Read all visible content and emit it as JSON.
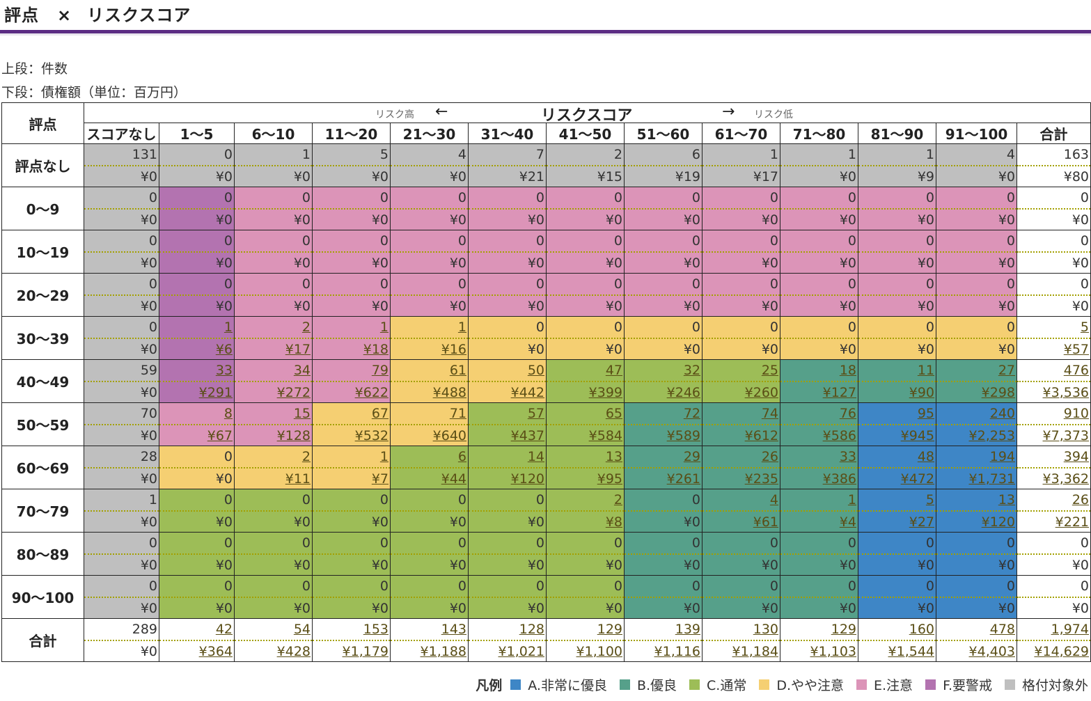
{
  "title": {
    "left": "評点",
    "x": "×",
    "right": "リスクスコア"
  },
  "notes": {
    "upper": "上段：件数",
    "lower": "下段：債権額（単位：百万円）"
  },
  "header": {
    "row_label": "評点",
    "risk_high": "リスク高",
    "arrow_left": "←",
    "main": "リスクスコア",
    "arrow_right": "→",
    "risk_low": "リスク低",
    "columns": [
      "スコアなし",
      "1～5",
      "6～10",
      "11～20",
      "21～30",
      "31～40",
      "41～50",
      "51～60",
      "61～70",
      "71～80",
      "81～90",
      "91～100",
      "合計"
    ]
  },
  "colors": {
    "A": "#3e86c6",
    "B": "#56a08a",
    "C": "#9dbd57",
    "D": "#f5cf72",
    "E": "#dc94b8",
    "F": "#b373b0",
    "X": "#bfbfbf",
    "T": "#ffffff"
  },
  "rows": [
    {
      "label": "評点なし",
      "cells": [
        {
          "c": "X",
          "n": "131",
          "a": "¥0"
        },
        {
          "c": "X",
          "n": "0",
          "a": "¥0"
        },
        {
          "c": "X",
          "n": "1",
          "a": "¥0"
        },
        {
          "c": "X",
          "n": "5",
          "a": "¥0"
        },
        {
          "c": "X",
          "n": "4",
          "a": "¥0"
        },
        {
          "c": "X",
          "n": "7",
          "a": "¥21"
        },
        {
          "c": "X",
          "n": "2",
          "a": "¥15"
        },
        {
          "c": "X",
          "n": "6",
          "a": "¥19"
        },
        {
          "c": "X",
          "n": "1",
          "a": "¥17"
        },
        {
          "c": "X",
          "n": "1",
          "a": "¥0"
        },
        {
          "c": "X",
          "n": "1",
          "a": "¥9"
        },
        {
          "c": "X",
          "n": "4",
          "a": "¥0"
        },
        {
          "c": "T",
          "n": "163",
          "a": "¥80"
        }
      ]
    },
    {
      "label": "0～9",
      "cells": [
        {
          "c": "X",
          "n": "0",
          "a": "¥0"
        },
        {
          "c": "F",
          "n": "0",
          "a": "¥0"
        },
        {
          "c": "E",
          "n": "0",
          "a": "¥0"
        },
        {
          "c": "E",
          "n": "0",
          "a": "¥0"
        },
        {
          "c": "E",
          "n": "0",
          "a": "¥0"
        },
        {
          "c": "E",
          "n": "0",
          "a": "¥0"
        },
        {
          "c": "E",
          "n": "0",
          "a": "¥0"
        },
        {
          "c": "E",
          "n": "0",
          "a": "¥0"
        },
        {
          "c": "E",
          "n": "0",
          "a": "¥0"
        },
        {
          "c": "E",
          "n": "0",
          "a": "¥0"
        },
        {
          "c": "E",
          "n": "0",
          "a": "¥0"
        },
        {
          "c": "E",
          "n": "0",
          "a": "¥0"
        },
        {
          "c": "T",
          "n": "0",
          "a": "¥0"
        }
      ]
    },
    {
      "label": "10～19",
      "cells": [
        {
          "c": "X",
          "n": "0",
          "a": "¥0"
        },
        {
          "c": "F",
          "n": "0",
          "a": "¥0"
        },
        {
          "c": "E",
          "n": "0",
          "a": "¥0"
        },
        {
          "c": "E",
          "n": "0",
          "a": "¥0"
        },
        {
          "c": "E",
          "n": "0",
          "a": "¥0"
        },
        {
          "c": "E",
          "n": "0",
          "a": "¥0"
        },
        {
          "c": "E",
          "n": "0",
          "a": "¥0"
        },
        {
          "c": "E",
          "n": "0",
          "a": "¥0"
        },
        {
          "c": "E",
          "n": "0",
          "a": "¥0"
        },
        {
          "c": "E",
          "n": "0",
          "a": "¥0"
        },
        {
          "c": "E",
          "n": "0",
          "a": "¥0"
        },
        {
          "c": "E",
          "n": "0",
          "a": "¥0"
        },
        {
          "c": "T",
          "n": "0",
          "a": "¥0"
        }
      ]
    },
    {
      "label": "20～29",
      "cells": [
        {
          "c": "X",
          "n": "0",
          "a": "¥0"
        },
        {
          "c": "F",
          "n": "0",
          "a": "¥0"
        },
        {
          "c": "E",
          "n": "0",
          "a": "¥0"
        },
        {
          "c": "E",
          "n": "0",
          "a": "¥0"
        },
        {
          "c": "E",
          "n": "0",
          "a": "¥0"
        },
        {
          "c": "E",
          "n": "0",
          "a": "¥0"
        },
        {
          "c": "E",
          "n": "0",
          "a": "¥0"
        },
        {
          "c": "E",
          "n": "0",
          "a": "¥0"
        },
        {
          "c": "E",
          "n": "0",
          "a": "¥0"
        },
        {
          "c": "E",
          "n": "0",
          "a": "¥0"
        },
        {
          "c": "E",
          "n": "0",
          "a": "¥0"
        },
        {
          "c": "E",
          "n": "0",
          "a": "¥0"
        },
        {
          "c": "T",
          "n": "0",
          "a": "¥0"
        }
      ]
    },
    {
      "label": "30～39",
      "cells": [
        {
          "c": "X",
          "n": "0",
          "a": "¥0"
        },
        {
          "c": "F",
          "n": "1",
          "a": "¥6",
          "u": true
        },
        {
          "c": "E",
          "n": "2",
          "a": "¥17",
          "u": true
        },
        {
          "c": "E",
          "n": "1",
          "a": "¥18",
          "u": true
        },
        {
          "c": "D",
          "n": "1",
          "a": "¥16",
          "u": true
        },
        {
          "c": "D",
          "n": "0",
          "a": "¥0"
        },
        {
          "c": "D",
          "n": "0",
          "a": "¥0"
        },
        {
          "c": "D",
          "n": "0",
          "a": "¥0"
        },
        {
          "c": "D",
          "n": "0",
          "a": "¥0"
        },
        {
          "c": "D",
          "n": "0",
          "a": "¥0"
        },
        {
          "c": "D",
          "n": "0",
          "a": "¥0"
        },
        {
          "c": "D",
          "n": "0",
          "a": "¥0"
        },
        {
          "c": "T",
          "n": "5",
          "a": "¥57",
          "u": true
        }
      ]
    },
    {
      "label": "40～49",
      "cells": [
        {
          "c": "X",
          "n": "59",
          "a": "¥0"
        },
        {
          "c": "F",
          "n": "33",
          "a": "¥291",
          "u": true
        },
        {
          "c": "E",
          "n": "34",
          "a": "¥272",
          "u": true
        },
        {
          "c": "E",
          "n": "79",
          "a": "¥622",
          "u": true
        },
        {
          "c": "D",
          "n": "61",
          "a": "¥488",
          "u": true
        },
        {
          "c": "D",
          "n": "50",
          "a": "¥442",
          "u": true
        },
        {
          "c": "C",
          "n": "47",
          "a": "¥399",
          "u": true
        },
        {
          "c": "C",
          "n": "32",
          "a": "¥246",
          "u": true
        },
        {
          "c": "C",
          "n": "25",
          "a": "¥260",
          "u": true
        },
        {
          "c": "B",
          "n": "18",
          "a": "¥127",
          "u": true
        },
        {
          "c": "B",
          "n": "11",
          "a": "¥90",
          "u": true
        },
        {
          "c": "B",
          "n": "27",
          "a": "¥298",
          "u": true
        },
        {
          "c": "T",
          "n": "476",
          "a": "¥3,536",
          "u": true
        }
      ]
    },
    {
      "label": "50～59",
      "cells": [
        {
          "c": "X",
          "n": "70",
          "a": "¥0"
        },
        {
          "c": "E",
          "n": "8",
          "a": "¥67",
          "u": true
        },
        {
          "c": "E",
          "n": "15",
          "a": "¥128",
          "u": true
        },
        {
          "c": "D",
          "n": "67",
          "a": "¥532",
          "u": true
        },
        {
          "c": "D",
          "n": "71",
          "a": "¥640",
          "u": true
        },
        {
          "c": "C",
          "n": "57",
          "a": "¥437",
          "u": true
        },
        {
          "c": "C",
          "n": "65",
          "a": "¥584",
          "u": true
        },
        {
          "c": "B",
          "n": "72",
          "a": "¥589",
          "u": true
        },
        {
          "c": "B",
          "n": "74",
          "a": "¥612",
          "u": true
        },
        {
          "c": "B",
          "n": "76",
          "a": "¥586",
          "u": true
        },
        {
          "c": "A",
          "n": "95",
          "a": "¥945",
          "u": true
        },
        {
          "c": "A",
          "n": "240",
          "a": "¥2,253",
          "u": true
        },
        {
          "c": "T",
          "n": "910",
          "a": "¥7,373",
          "u": true
        }
      ]
    },
    {
      "label": "60～69",
      "cells": [
        {
          "c": "X",
          "n": "28",
          "a": "¥0"
        },
        {
          "c": "D",
          "n": "0",
          "a": "¥0"
        },
        {
          "c": "D",
          "n": "2",
          "a": "¥11",
          "u": true
        },
        {
          "c": "D",
          "n": "1",
          "a": "¥7",
          "u": true
        },
        {
          "c": "C",
          "n": "6",
          "a": "¥44",
          "u": true
        },
        {
          "c": "C",
          "n": "14",
          "a": "¥120",
          "u": true
        },
        {
          "c": "C",
          "n": "13",
          "a": "¥95",
          "u": true
        },
        {
          "c": "B",
          "n": "29",
          "a": "¥261",
          "u": true
        },
        {
          "c": "B",
          "n": "26",
          "a": "¥235",
          "u": true
        },
        {
          "c": "B",
          "n": "33",
          "a": "¥386",
          "u": true
        },
        {
          "c": "A",
          "n": "48",
          "a": "¥472",
          "u": true
        },
        {
          "c": "A",
          "n": "194",
          "a": "¥1,731",
          "u": true
        },
        {
          "c": "T",
          "n": "394",
          "a": "¥3,362",
          "u": true
        }
      ]
    },
    {
      "label": "70～79",
      "cells": [
        {
          "c": "X",
          "n": "1",
          "a": "¥0"
        },
        {
          "c": "C",
          "n": "0",
          "a": "¥0"
        },
        {
          "c": "C",
          "n": "0",
          "a": "¥0"
        },
        {
          "c": "C",
          "n": "0",
          "a": "¥0"
        },
        {
          "c": "C",
          "n": "0",
          "a": "¥0"
        },
        {
          "c": "C",
          "n": "0",
          "a": "¥0"
        },
        {
          "c": "C",
          "n": "2",
          "a": "¥8",
          "u": true
        },
        {
          "c": "B",
          "n": "0",
          "a": "¥0"
        },
        {
          "c": "B",
          "n": "4",
          "a": "¥61",
          "u": true
        },
        {
          "c": "B",
          "n": "1",
          "a": "¥4",
          "u": true
        },
        {
          "c": "A",
          "n": "5",
          "a": "¥27",
          "u": true
        },
        {
          "c": "A",
          "n": "13",
          "a": "¥120",
          "u": true
        },
        {
          "c": "T",
          "n": "26",
          "a": "¥221",
          "u": true
        }
      ]
    },
    {
      "label": "80～89",
      "cells": [
        {
          "c": "X",
          "n": "0",
          "a": "¥0"
        },
        {
          "c": "C",
          "n": "0",
          "a": "¥0"
        },
        {
          "c": "C",
          "n": "0",
          "a": "¥0"
        },
        {
          "c": "C",
          "n": "0",
          "a": "¥0"
        },
        {
          "c": "C",
          "n": "0",
          "a": "¥0"
        },
        {
          "c": "C",
          "n": "0",
          "a": "¥0"
        },
        {
          "c": "C",
          "n": "0",
          "a": "¥0"
        },
        {
          "c": "B",
          "n": "0",
          "a": "¥0"
        },
        {
          "c": "B",
          "n": "0",
          "a": "¥0"
        },
        {
          "c": "B",
          "n": "0",
          "a": "¥0"
        },
        {
          "c": "A",
          "n": "0",
          "a": "¥0"
        },
        {
          "c": "A",
          "n": "0",
          "a": "¥0"
        },
        {
          "c": "T",
          "n": "0",
          "a": "¥0"
        }
      ]
    },
    {
      "label": "90～100",
      "cells": [
        {
          "c": "X",
          "n": "0",
          "a": "¥0"
        },
        {
          "c": "C",
          "n": "0",
          "a": "¥0"
        },
        {
          "c": "C",
          "n": "0",
          "a": "¥0"
        },
        {
          "c": "C",
          "n": "0",
          "a": "¥0"
        },
        {
          "c": "C",
          "n": "0",
          "a": "¥0"
        },
        {
          "c": "C",
          "n": "0",
          "a": "¥0"
        },
        {
          "c": "C",
          "n": "0",
          "a": "¥0"
        },
        {
          "c": "B",
          "n": "0",
          "a": "¥0"
        },
        {
          "c": "B",
          "n": "0",
          "a": "¥0"
        },
        {
          "c": "B",
          "n": "0",
          "a": "¥0"
        },
        {
          "c": "A",
          "n": "0",
          "a": "¥0"
        },
        {
          "c": "A",
          "n": "0",
          "a": "¥0"
        },
        {
          "c": "T",
          "n": "0",
          "a": "¥0"
        }
      ]
    },
    {
      "label": "合計",
      "cells": [
        {
          "c": "T",
          "n": "289",
          "a": "¥0"
        },
        {
          "c": "T",
          "n": "42",
          "a": "¥364",
          "u": true
        },
        {
          "c": "T",
          "n": "54",
          "a": "¥428",
          "u": true
        },
        {
          "c": "T",
          "n": "153",
          "a": "¥1,179",
          "u": true
        },
        {
          "c": "T",
          "n": "143",
          "a": "¥1,188",
          "u": true
        },
        {
          "c": "T",
          "n": "128",
          "a": "¥1,021",
          "u": true
        },
        {
          "c": "T",
          "n": "129",
          "a": "¥1,100",
          "u": true
        },
        {
          "c": "T",
          "n": "139",
          "a": "¥1,116",
          "u": true
        },
        {
          "c": "T",
          "n": "130",
          "a": "¥1,184",
          "u": true
        },
        {
          "c": "T",
          "n": "129",
          "a": "¥1,103",
          "u": true
        },
        {
          "c": "T",
          "n": "160",
          "a": "¥1,544",
          "u": true
        },
        {
          "c": "T",
          "n": "478",
          "a": "¥4,403",
          "u": true
        },
        {
          "c": "T",
          "n": "1,974",
          "a": "¥14,629",
          "u": true
        }
      ]
    }
  ],
  "legend": {
    "title": "凡例",
    "items": [
      {
        "key": "A",
        "label": "A.非常に優良"
      },
      {
        "key": "B",
        "label": "B.優良"
      },
      {
        "key": "C",
        "label": "C.通常"
      },
      {
        "key": "D",
        "label": "D.やや注意"
      },
      {
        "key": "E",
        "label": "E.注意"
      },
      {
        "key": "F",
        "label": "F.要警戒"
      },
      {
        "key": "X",
        "label": "格付対象外"
      }
    ]
  }
}
